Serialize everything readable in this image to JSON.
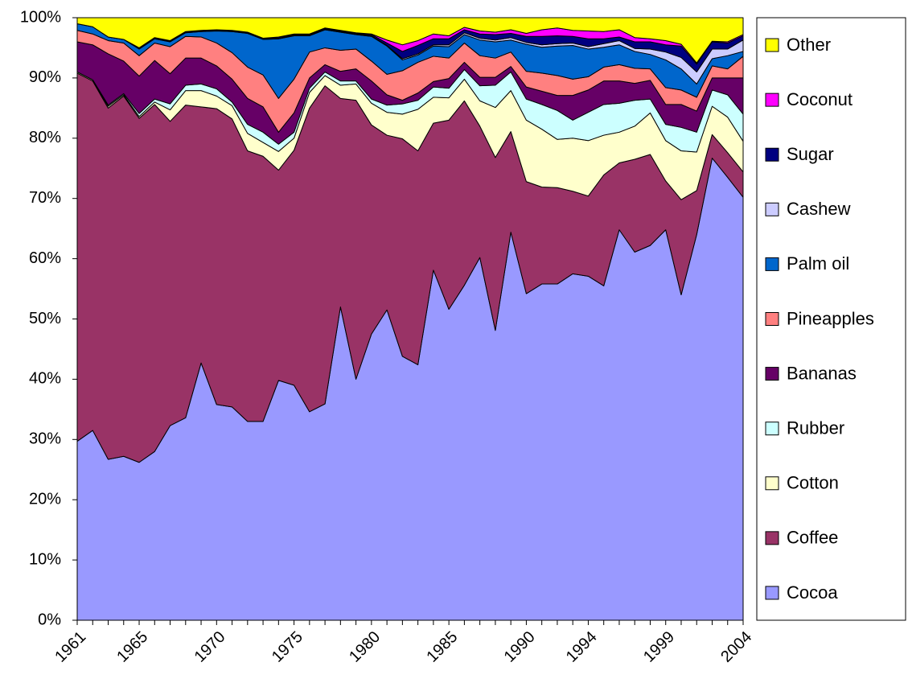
{
  "chart_data": {
    "type": "stacked-area",
    "x": [
      1961,
      1962,
      1963,
      1964,
      1965,
      1966,
      1967,
      1968,
      1969,
      1970,
      1971,
      1972,
      1973,
      1974,
      1975,
      1976,
      1977,
      1978,
      1979,
      1980,
      1981,
      1982,
      1983,
      1984,
      1985,
      1986,
      1987,
      1988,
      1989,
      1990,
      1991,
      1992,
      1993,
      1994,
      1995,
      1996,
      1997,
      1998,
      1999,
      2000,
      2001,
      2002,
      2003,
      2004
    ],
    "xlim": [
      1961,
      2004
    ],
    "xticks": [
      1961,
      1965,
      1970,
      1975,
      1980,
      1985,
      1990,
      1994,
      1999,
      2004
    ],
    "ylim": [
      0,
      100
    ],
    "yticks": [
      {
        "value": 0,
        "label": "0%"
      },
      {
        "value": 10,
        "label": "10%"
      },
      {
        "value": 20,
        "label": "20%"
      },
      {
        "value": 30,
        "label": "30%"
      },
      {
        "value": 40,
        "label": "40%"
      },
      {
        "value": 50,
        "label": "50%"
      },
      {
        "value": 60,
        "label": "60%"
      },
      {
        "value": 70,
        "label": "70%"
      },
      {
        "value": 80,
        "label": "80%"
      },
      {
        "value": 90,
        "label": "90%"
      },
      {
        "value": 100,
        "label": "100%"
      }
    ],
    "legend": "right",
    "series": [
      {
        "name": "Cocoa",
        "color": "#9999ff",
        "values": [
          29.7,
          31.5,
          26.7,
          27.2,
          26.2,
          28.0,
          32.3,
          33.6,
          42.7,
          35.8,
          35.4,
          33.0,
          33.0,
          39.8,
          39.0,
          34.6,
          35.9,
          52.0,
          40.0,
          47.5,
          51.5,
          43.8,
          42.4,
          58.1,
          51.6,
          55.6,
          60.2,
          48.1,
          64.4,
          54.2,
          55.8,
          55.8,
          57.5,
          57.1,
          55.5,
          64.8,
          61.1,
          62.2,
          64.8,
          54.0,
          64.0,
          76.7,
          73.5,
          70.2
        ]
      },
      {
        "name": "Coffee",
        "color": "#993366",
        "values": [
          61.1,
          58.0,
          58.3,
          59.8,
          57.1,
          57.6,
          50.5,
          51.9,
          42.5,
          49.1,
          47.8,
          44.9,
          44.0,
          34.9,
          39.0,
          50.4,
          52.8,
          34.6,
          46.3,
          34.7,
          29.0,
          36.1,
          35.5,
          24.4,
          31.4,
          30.6,
          21.8,
          28.7,
          16.7,
          18.6,
          16.1,
          16.0,
          13.7,
          13.3,
          18.4,
          11.1,
          15.4,
          15.1,
          8.1,
          15.8,
          7.3,
          3.9,
          4.1,
          4.2
        ]
      },
      {
        "name": "Cotton",
        "color": "#ffffcc",
        "values": [
          0.2,
          0.2,
          0.3,
          0.2,
          0.3,
          0.4,
          1.9,
          2.4,
          2.7,
          2.1,
          2.2,
          2.9,
          2.3,
          3.1,
          2.0,
          2.6,
          1.7,
          2.2,
          2.7,
          3.6,
          3.8,
          4.1,
          6.9,
          4.3,
          3.7,
          3.6,
          4.2,
          8.3,
          6.8,
          10.2,
          9.6,
          8.0,
          8.8,
          9.2,
          6.6,
          5.1,
          5.5,
          6.9,
          6.7,
          8.1,
          6.4,
          4.7,
          5.9,
          5.1
        ]
      },
      {
        "name": "Rubber",
        "color": "#ccffff",
        "values": [
          0,
          0,
          0.2,
          0.2,
          0.5,
          0.5,
          1.0,
          0.9,
          1.1,
          1.2,
          0.6,
          1.5,
          1.7,
          1.2,
          1.0,
          0.7,
          0.6,
          0.7,
          0.5,
          0.7,
          1.2,
          1.7,
          1.5,
          1.7,
          1.6,
          1.6,
          2.5,
          3.7,
          3.1,
          3.5,
          4.1,
          4.8,
          3.0,
          4.7,
          5.1,
          4.8,
          4.3,
          2.3,
          2.7,
          3.9,
          3.3,
          2.7,
          3.7,
          4.5
        ]
      },
      {
        "name": "Bananas",
        "color": "#660066",
        "values": [
          5.0,
          5.8,
          8.5,
          5.4,
          6.2,
          6.4,
          5.0,
          4.5,
          4.3,
          3.8,
          3.8,
          4.3,
          4.2,
          2.0,
          3.2,
          1.7,
          1.2,
          1.6,
          2.0,
          3.0,
          1.7,
          0.6,
          1.2,
          0.9,
          1.6,
          1.2,
          1.4,
          1.3,
          0.9,
          2.0,
          2.2,
          2.5,
          4.1,
          3.7,
          3.9,
          3.7,
          2.8,
          3.1,
          3.3,
          3.8,
          3.5,
          2.0,
          2.8,
          6.0
        ]
      },
      {
        "name": "Pineapples",
        "color": "#ff8080",
        "values": [
          1.9,
          1.8,
          2.2,
          3.0,
          3.4,
          2.9,
          4.5,
          3.6,
          3.5,
          3.8,
          4.4,
          5.2,
          5.3,
          5.6,
          5.6,
          4.3,
          2.8,
          3.5,
          3.3,
          3.3,
          3.4,
          4.9,
          5.1,
          4.2,
          3.4,
          3.2,
          3.6,
          3.2,
          2.4,
          2.6,
          3.0,
          3.3,
          2.7,
          2.2,
          2.3,
          2.7,
          2.5,
          1.9,
          2.8,
          2.4,
          2.3,
          2.0,
          1.5,
          3.6
        ]
      },
      {
        "name": "Palm oil",
        "color": "#0066cc",
        "values": [
          1.1,
          1.2,
          0.6,
          0.6,
          1.1,
          0.7,
          0.8,
          0.6,
          0.9,
          2.0,
          3.5,
          5.6,
          5.9,
          9.9,
          7.2,
          2.7,
          3.0,
          3.0,
          2.4,
          4.1,
          4.7,
          1.8,
          1.2,
          1.7,
          1.9,
          1.4,
          2.6,
          2.7,
          2.0,
          4.5,
          4.3,
          4.9,
          5.6,
          4.6,
          3.3,
          3.3,
          2.8,
          2.4,
          4.6,
          3.5,
          2.2,
          1.2,
          2.2,
          0.8
        ]
      },
      {
        "name": "Cashew",
        "color": "#ccccff",
        "values": [
          0,
          0,
          0,
          0,
          0.1,
          0.1,
          0.1,
          0.1,
          0.1,
          0.1,
          0.1,
          0.1,
          0.1,
          0.1,
          0.1,
          0.1,
          0.1,
          0.1,
          0.1,
          0.1,
          0.1,
          0.2,
          0.2,
          0.2,
          0.3,
          0.3,
          0.3,
          0.3,
          0.4,
          0.3,
          0.4,
          0.4,
          0.4,
          0.4,
          0.6,
          0.7,
          0.5,
          0.9,
          1.3,
          1.9,
          2.0,
          1.6,
          1.1,
          1.9
        ]
      },
      {
        "name": "Sugar",
        "color": "#000080",
        "values": [
          0,
          0,
          0,
          0,
          0.1,
          0.1,
          0.1,
          0.1,
          0.1,
          0.1,
          0.1,
          0.1,
          0.1,
          0.2,
          0.1,
          0.1,
          0.1,
          0.1,
          0.1,
          0.2,
          0.4,
          1.2,
          1.4,
          1.0,
          1.0,
          0.5,
          0.7,
          0.9,
          0.7,
          1.0,
          1.4,
          1.3,
          1.1,
          1.3,
          0.8,
          0.6,
          1.1,
          1.2,
          1.2,
          1.9,
          1.3,
          1.2,
          1.0,
          0.7
        ]
      },
      {
        "name": "Coconut",
        "color": "#ff00ff",
        "values": [
          0,
          0,
          0,
          0,
          0,
          0,
          0,
          0,
          0,
          0,
          0,
          0,
          0,
          0,
          0.1,
          0.1,
          0.1,
          0.1,
          0.1,
          0.1,
          0.5,
          1.1,
          0.8,
          0.8,
          0.5,
          0.4,
          0.5,
          0.4,
          0.6,
          0.5,
          1.1,
          1.3,
          1.0,
          1.3,
          1.2,
          1.2,
          0.7,
          0.5,
          0.7,
          0.3,
          0.2,
          0.1,
          0.2,
          0.2
        ]
      },
      {
        "name": "Other",
        "color": "#ffff00",
        "values": [
          1.0,
          1.5,
          3.2,
          3.6,
          5.0,
          3.3,
          3.8,
          2.3,
          2.1,
          2.0,
          2.1,
          2.4,
          3.4,
          3.2,
          2.7,
          2.7,
          1.7,
          2.1,
          2.5,
          2.7,
          3.7,
          4.5,
          3.8,
          2.7,
          3.0,
          1.6,
          2.2,
          2.4,
          2.0,
          2.6,
          2.0,
          1.7,
          2.1,
          2.2,
          2.3,
          2.0,
          3.3,
          3.5,
          3.8,
          4.4,
          7.5,
          3.9,
          4.0,
          2.8
        ]
      }
    ]
  }
}
